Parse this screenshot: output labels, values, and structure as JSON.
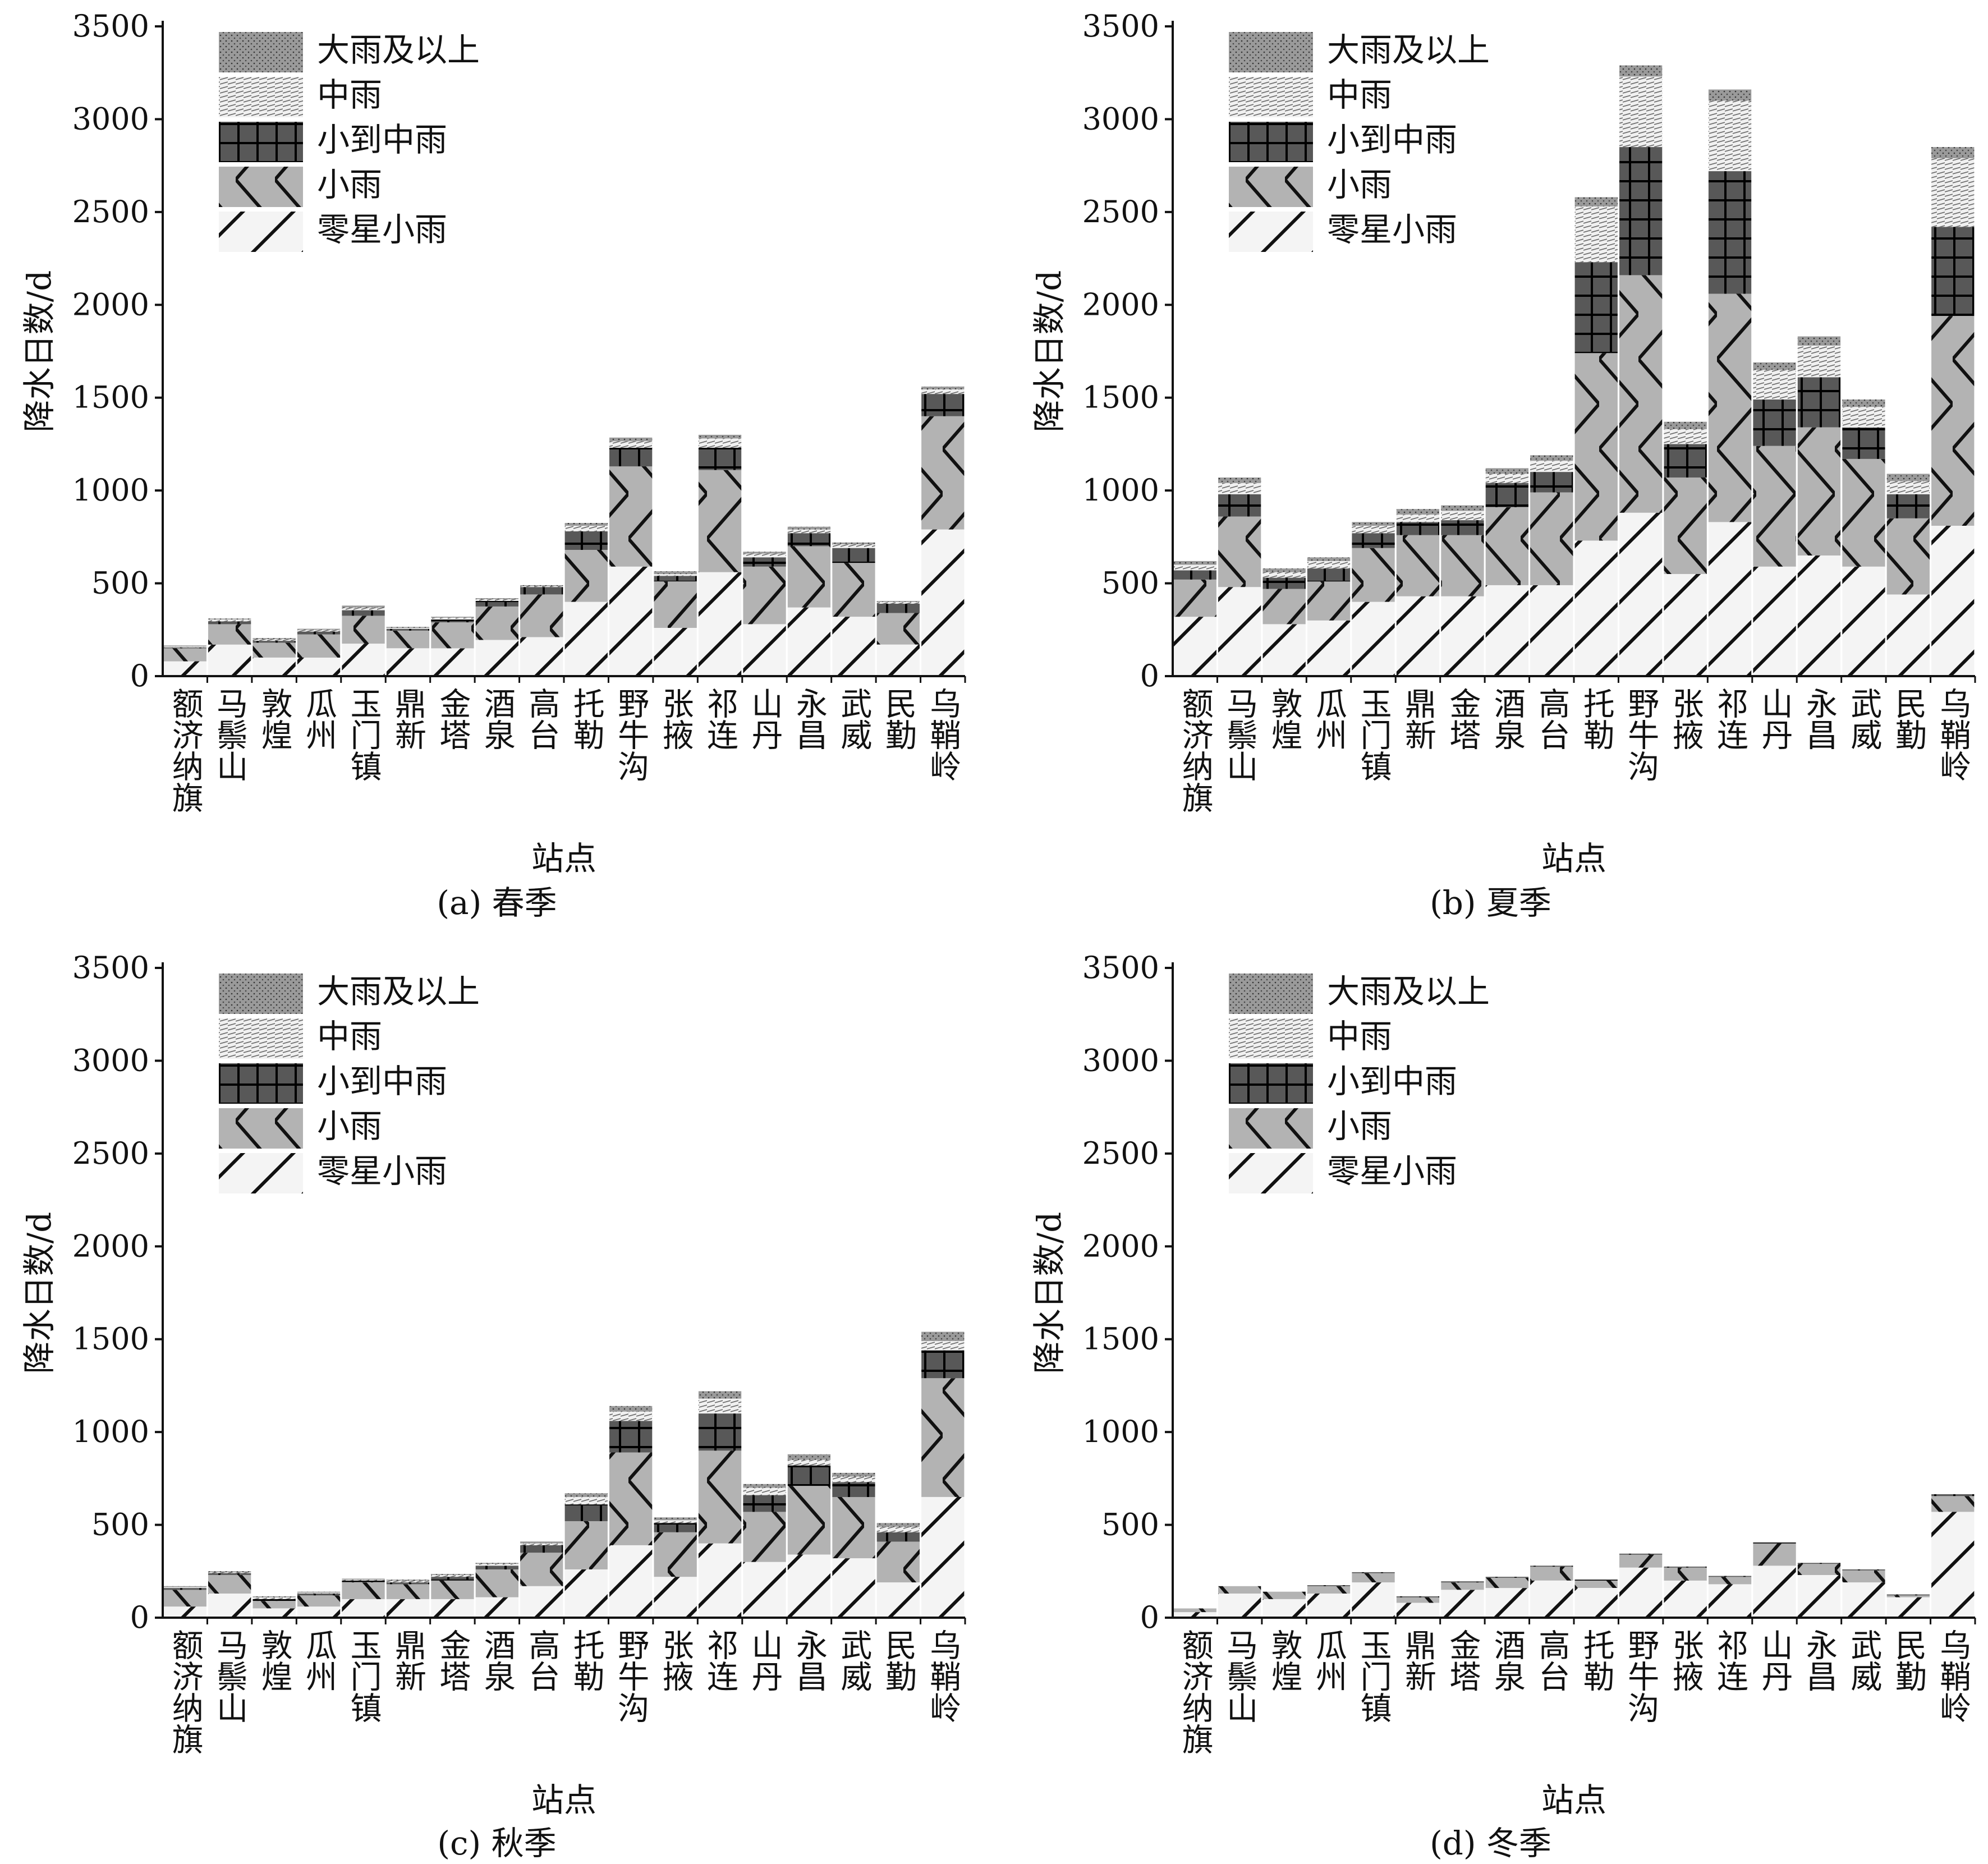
{
  "y_label": "降水日数/d",
  "x_label": "站点",
  "stations": [
    "额济纳旗",
    "马鬃山",
    "敦煌",
    "瓜州",
    "玉门镇",
    "鼎新",
    "金塔",
    "酒泉",
    "高台",
    "托勒",
    "野牛沟",
    "张掖",
    "祁连",
    "山丹",
    "永昌",
    "武威",
    "民勤",
    "乌鞘岭"
  ],
  "legend": [
    "大雨及以上",
    "中雨",
    "小到中雨",
    "小雨",
    "零星小雨"
  ],
  "chart_data": [
    {
      "type": "bar",
      "stacked": true,
      "caption": "(a) 春季",
      "ylim": [
        0,
        3500
      ],
      "yticks": [
        0,
        500,
        1000,
        1500,
        2000,
        2500,
        3000,
        3500
      ],
      "series": [
        {
          "name": "零星小雨",
          "values": [
            80,
            170,
            100,
            100,
            175,
            150,
            150,
            195,
            210,
            400,
            590,
            260,
            560,
            280,
            370,
            320,
            170,
            790
          ]
        },
        {
          "name": "小雨",
          "values": [
            70,
            110,
            80,
            125,
            150,
            95,
            140,
            180,
            230,
            280,
            540,
            250,
            550,
            310,
            330,
            290,
            170,
            610
          ]
        },
        {
          "name": "小到中雨",
          "values": [
            5,
            15,
            10,
            15,
            30,
            10,
            15,
            30,
            40,
            100,
            100,
            30,
            120,
            50,
            70,
            80,
            50,
            120
          ]
        },
        {
          "name": "中雨",
          "values": [
            5,
            10,
            10,
            10,
            15,
            5,
            10,
            10,
            5,
            30,
            35,
            10,
            50,
            20,
            20,
            20,
            10,
            25
          ]
        },
        {
          "name": "大雨及以上",
          "values": [
            5,
            5,
            5,
            5,
            10,
            5,
            5,
            5,
            5,
            15,
            20,
            15,
            20,
            10,
            15,
            10,
            5,
            15
          ]
        }
      ]
    },
    {
      "type": "bar",
      "stacked": true,
      "caption": "(b) 夏季",
      "ylim": [
        0,
        3500
      ],
      "yticks": [
        0,
        500,
        1000,
        1500,
        2000,
        2500,
        3000,
        3500
      ],
      "series": [
        {
          "name": "零星小雨",
          "values": [
            320,
            480,
            280,
            300,
            400,
            430,
            430,
            490,
            490,
            730,
            880,
            550,
            830,
            590,
            650,
            590,
            440,
            810
          ]
        },
        {
          "name": "小雨",
          "values": [
            200,
            380,
            190,
            210,
            290,
            330,
            330,
            420,
            500,
            1010,
            1280,
            520,
            1230,
            650,
            690,
            580,
            410,
            1130
          ]
        },
        {
          "name": "小到中雨",
          "values": [
            50,
            120,
            60,
            70,
            80,
            70,
            80,
            130,
            110,
            490,
            690,
            180,
            660,
            250,
            270,
            170,
            130,
            480
          ]
        },
        {
          "name": "中雨",
          "values": [
            30,
            60,
            30,
            40,
            40,
            40,
            50,
            50,
            60,
            300,
            380,
            80,
            380,
            160,
            170,
            110,
            70,
            370
          ]
        },
        {
          "name": "大雨及以上",
          "values": [
            20,
            30,
            20,
            20,
            20,
            30,
            30,
            30,
            30,
            50,
            60,
            40,
            60,
            40,
            50,
            40,
            40,
            60
          ]
        }
      ]
    },
    {
      "type": "bar",
      "stacked": true,
      "caption": "(c) 秋季",
      "ylim": [
        0,
        3500
      ],
      "yticks": [
        0,
        500,
        1000,
        1500,
        2000,
        2500,
        3000,
        3500
      ],
      "series": [
        {
          "name": "零星小雨",
          "values": [
            60,
            130,
            50,
            60,
            100,
            100,
            100,
            110,
            170,
            260,
            390,
            220,
            400,
            300,
            340,
            320,
            190,
            650
          ]
        },
        {
          "name": "小雨",
          "values": [
            90,
            100,
            40,
            60,
            90,
            80,
            100,
            150,
            180,
            260,
            500,
            240,
            500,
            270,
            370,
            330,
            220,
            640
          ]
        },
        {
          "name": "小到中雨",
          "values": [
            10,
            10,
            10,
            10,
            10,
            10,
            20,
            20,
            40,
            90,
            170,
            50,
            200,
            90,
            110,
            80,
            50,
            150
          ]
        },
        {
          "name": "中雨",
          "values": [
            5,
            5,
            10,
            5,
            5,
            10,
            10,
            10,
            10,
            40,
            50,
            15,
            80,
            40,
            30,
            30,
            30,
            50
          ]
        },
        {
          "name": "大雨及以上",
          "values": [
            5,
            5,
            5,
            5,
            5,
            5,
            5,
            5,
            10,
            20,
            30,
            15,
            40,
            20,
            30,
            20,
            20,
            50
          ]
        }
      ]
    },
    {
      "type": "bar",
      "stacked": true,
      "caption": "(d) 冬季",
      "ylim": [
        0,
        3500
      ],
      "yticks": [
        0,
        500,
        1000,
        1500,
        2000,
        2500,
        3000,
        3500
      ],
      "series": [
        {
          "name": "零星小雨",
          "values": [
            30,
            130,
            100,
            130,
            190,
            80,
            150,
            160,
            200,
            160,
            270,
            200,
            180,
            280,
            230,
            190,
            110,
            570
          ]
        },
        {
          "name": "小雨",
          "values": [
            20,
            40,
            40,
            40,
            50,
            30,
            40,
            55,
            75,
            40,
            70,
            70,
            40,
            120,
            60,
            65,
            10,
            85
          ]
        },
        {
          "name": "小到中雨",
          "values": [
            0,
            0,
            0,
            5,
            5,
            5,
            5,
            5,
            5,
            5,
            5,
            5,
            5,
            5,
            5,
            5,
            5,
            10
          ]
        },
        {
          "name": "中雨",
          "values": [
            0,
            0,
            0,
            0,
            0,
            0,
            0,
            0,
            0,
            0,
            0,
            0,
            0,
            0,
            0,
            0,
            0,
            0
          ]
        },
        {
          "name": "大雨及以上",
          "values": [
            0,
            0,
            0,
            0,
            0,
            0,
            0,
            0,
            0,
            0,
            0,
            0,
            0,
            0,
            0,
            0,
            0,
            0
          ]
        }
      ]
    }
  ]
}
